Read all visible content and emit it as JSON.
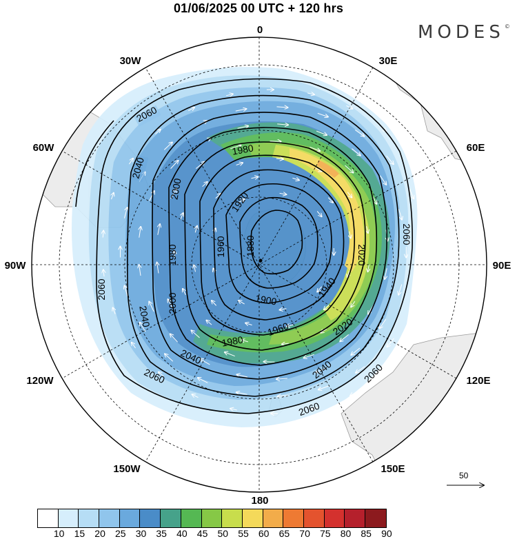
{
  "title": "01/06/2025  00 UTC  + 120 hrs",
  "brand": "MODES",
  "brand_mark": "©",
  "longitude_labels": {
    "lon_0": "0",
    "lon_30e": "30E",
    "lon_60e": "60E",
    "lon_90e": "90E",
    "lon_120e": "120E",
    "lon_150e": "150E",
    "lon_180": "180",
    "lon_150w": "150W",
    "lon_120w": "120W",
    "lon_90w": "90W",
    "lon_60w": "60W",
    "lon_30w": "30W"
  },
  "contour_labels": [
    "2060",
    "2040",
    "2020",
    "2000",
    "1980",
    "1960",
    "1940",
    "1920",
    "1900",
    "1880"
  ],
  "contour_label_items": [
    {
      "text": "2060"
    },
    {
      "text": "2040"
    },
    {
      "text": "2000"
    },
    {
      "text": "1980"
    },
    {
      "text": "1920"
    },
    {
      "text": "1880"
    },
    {
      "text": "1980"
    },
    {
      "text": "1960"
    },
    {
      "text": "1900"
    },
    {
      "text": "2000"
    },
    {
      "text": "2060"
    },
    {
      "text": "1940"
    },
    {
      "text": "2020"
    },
    {
      "text": "1960"
    },
    {
      "text": "1980"
    },
    {
      "text": "2020"
    },
    {
      "text": "2040"
    },
    {
      "text": "2060"
    },
    {
      "text": "2040"
    },
    {
      "text": "2060"
    },
    {
      "text": "2040"
    },
    {
      "text": "2060"
    },
    {
      "text": "2060"
    }
  ],
  "vector_reference": {
    "label": "50"
  },
  "colorbar": {
    "labels": [
      "10",
      "15",
      "20",
      "25",
      "30",
      "35",
      "40",
      "45",
      "50",
      "55",
      "60",
      "65",
      "70",
      "75",
      "80",
      "85",
      "90"
    ],
    "colors": [
      "#ffffff",
      "#d6eefc",
      "#b6ddf5",
      "#90c5ec",
      "#6aa9dd",
      "#4a8cc8",
      "#46a28a",
      "#55b853",
      "#86c846",
      "#c8dd4c",
      "#f4d95a",
      "#f2ac4a",
      "#ee7a33",
      "#e4532e",
      "#d4312e",
      "#b5202c",
      "#8c1a1e"
    ]
  }
}
